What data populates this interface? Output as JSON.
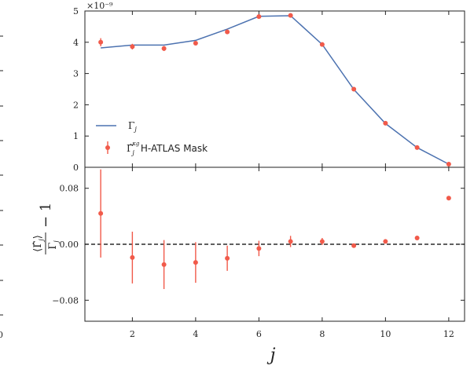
{
  "colors": {
    "model_line": "#4c72b0",
    "measurement": "#f15a4a",
    "zero_line": "#000000",
    "axes": "#222222"
  },
  "chart_data": [
    {
      "type": "line",
      "panel": "top",
      "exponent_label": "×10⁻⁹",
      "x": [
        1,
        2,
        3,
        4,
        5,
        6,
        7,
        8,
        9,
        10,
        11,
        12
      ],
      "xlim": [
        0.5,
        12.5
      ],
      "ylim": [
        0,
        5
      ],
      "yticks": [
        "0",
        "1",
        "2",
        "3",
        "4",
        "5"
      ],
      "series": [
        {
          "name": "Γ_j",
          "style": "line",
          "values": [
            3.82,
            3.91,
            3.91,
            4.06,
            4.42,
            4.83,
            4.85,
            3.93,
            2.49,
            1.4,
            0.63,
            0.1
          ]
        },
        {
          "name": "Γ̂_j^{κg} H-ATLAS Mask",
          "style": "errorbar",
          "values": [
            4.0,
            3.86,
            3.8,
            3.97,
            4.33,
            4.82,
            4.86,
            3.93,
            2.5,
            1.41,
            0.63,
            0.1
          ],
          "errors": [
            0.13,
            0.09,
            0.08,
            0.06,
            0.05,
            0.04,
            0.03,
            0.02,
            0.02,
            0.01,
            0.01,
            0.01
          ]
        }
      ],
      "legend": {
        "placement": "lower-left",
        "entries": [
          {
            "symbol": "Γ",
            "subscript": "j",
            "superscript": "",
            "suffix": ""
          },
          {
            "symbol": "Γ̂",
            "subscript": "j",
            "superscript": "κg",
            "suffix": "H-ATLAS Mask"
          }
        ]
      }
    },
    {
      "type": "scatter",
      "panel": "bottom",
      "xlabel": "j",
      "ylabel": "⟨Γ̂j⟩/Γj − 1",
      "ylabel_parts": {
        "numerator": "⟨Γ̂",
        "numerator_sub": "j",
        "numerator_close": "⟩",
        "denominator": "Γ",
        "denominator_sub": "j",
        "suffix": "− 1"
      },
      "x": [
        1,
        2,
        3,
        4,
        5,
        6,
        7,
        8,
        9,
        10,
        11,
        12
      ],
      "xticks": [
        "2",
        "4",
        "6",
        "8",
        "10",
        "12"
      ],
      "xtick_values": [
        2,
        4,
        6,
        8,
        10,
        12
      ],
      "xlim": [
        0.5,
        12.5
      ],
      "ylim": [
        -0.11,
        0.11
      ],
      "yticks": [
        "−0.08",
        "0.00",
        "0.08"
      ],
      "ytick_values": [
        -0.08,
        0.0,
        0.08
      ],
      "reference_line": 0.0,
      "series": [
        {
          "name": "",
          "style": "errorbar",
          "values": [
            0.044,
            -0.019,
            -0.029,
            -0.026,
            -0.02,
            -0.006,
            0.004,
            0.004,
            -0.002,
            0.004,
            0.009,
            0.066
          ],
          "errors": [
            0.063,
            0.037,
            0.035,
            0.029,
            0.018,
            0.011,
            0.008,
            0.005,
            0.003,
            0.002,
            0.002,
            0.002
          ]
        }
      ]
    }
  ],
  "edge_labels": {
    "left_cut_tick": "0"
  }
}
